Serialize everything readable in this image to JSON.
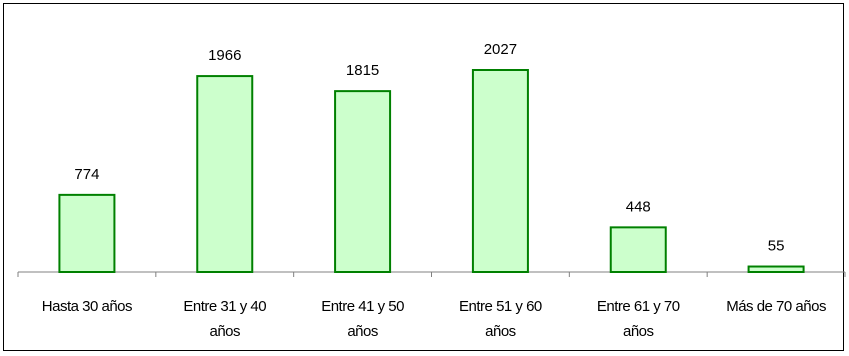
{
  "chart_data": {
    "type": "bar",
    "categories": [
      [
        "Hasta 30 años"
      ],
      [
        "Entre 31 y 40",
        "años"
      ],
      [
        "Entre 41 y 50",
        "años"
      ],
      [
        "Entre 51 y 60",
        "años"
      ],
      [
        "Entre 61 y 70",
        "años"
      ],
      [
        "Más de 70 años"
      ]
    ],
    "values": [
      774,
      1966,
      1815,
      2027,
      448,
      55
    ],
    "title": "",
    "xlabel": "",
    "ylabel": "",
    "ylim": [
      0,
      2400
    ],
    "grid": false,
    "legend": "none",
    "colors": {
      "bar_fill": "#ccffcc",
      "bar_stroke": "#008000"
    }
  }
}
